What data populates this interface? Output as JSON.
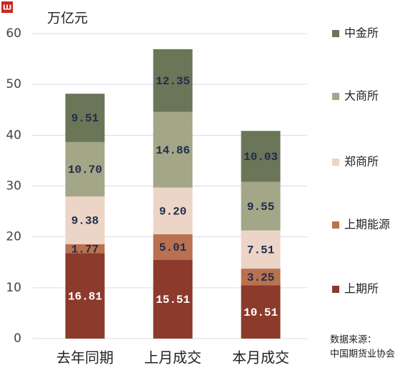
{
  "chart_data": {
    "type": "stacked_bar",
    "unit_label": "万亿元",
    "categories": [
      "去年同期",
      "上月成交",
      "本月成交"
    ],
    "series": [
      {
        "name": "上期所",
        "color": "#8b3a2c",
        "label_color": "#ffffff",
        "values": [
          16.81,
          15.51,
          10.51
        ],
        "value_labels": [
          "16.81",
          "15.51",
          "10.51"
        ]
      },
      {
        "name": "上期能源",
        "color": "#b9714f",
        "label_color": "#1f2d4d",
        "values": [
          1.77,
          5.01,
          3.25
        ],
        "value_labels": [
          "1.77",
          "5.01",
          "3.25"
        ]
      },
      {
        "name": "郑商所",
        "color": "#ecd5c7",
        "label_color": "#1f2d4d",
        "values": [
          9.38,
          9.2,
          7.51
        ],
        "value_labels": [
          "9.38",
          "9.20",
          "7.51"
        ]
      },
      {
        "name": "大商所",
        "color": "#a3a687",
        "label_color": "#1f2d4d",
        "values": [
          10.7,
          14.86,
          9.55
        ],
        "value_labels": [
          "10.70",
          "14.86",
          "9.55"
        ]
      },
      {
        "name": "中金所",
        "color": "#6b7558",
        "label_color": "#1f2d4d",
        "values": [
          9.51,
          12.35,
          10.03
        ],
        "value_labels": [
          "9.51",
          "12.35",
          "10.03"
        ]
      }
    ],
    "ylim": [
      0,
      60
    ],
    "yticks": [
      0,
      10,
      20,
      30,
      40,
      50,
      60
    ],
    "grid": true,
    "source": [
      "数据来源：",
      "中国期货业协会"
    ]
  }
}
